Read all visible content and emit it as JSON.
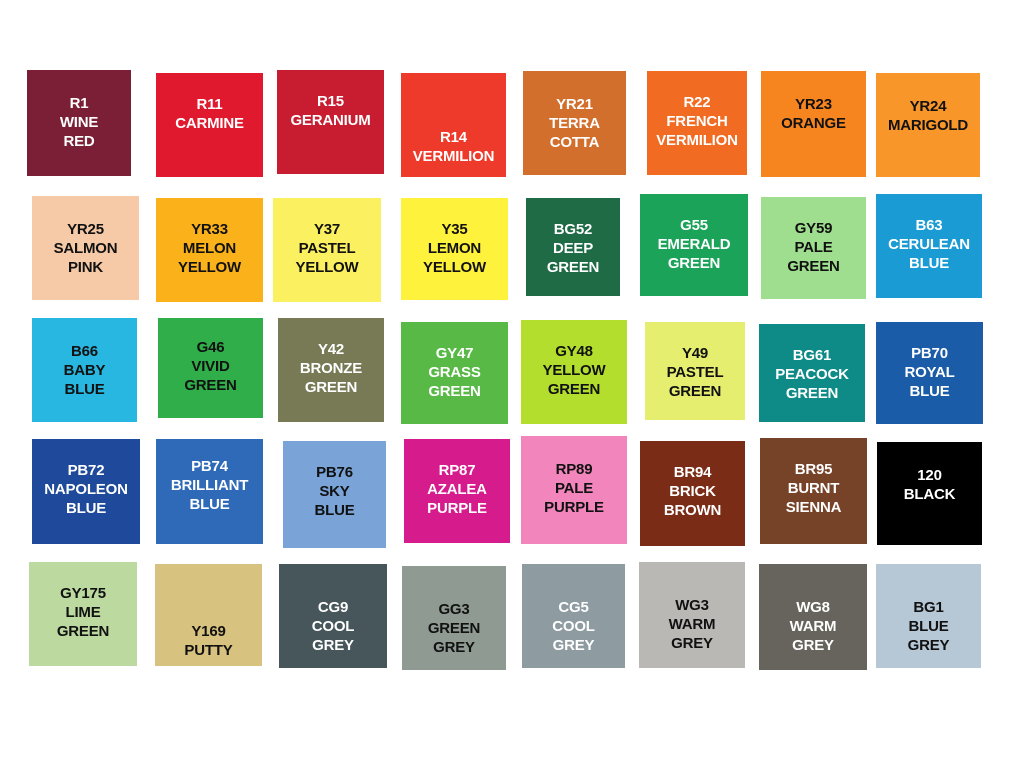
{
  "swatches": [
    {
      "lines": [
        "R1",
        "WINE",
        "RED"
      ],
      "color": "#7a1f35",
      "text_color": "#ffffff"
    },
    {
      "lines": [
        "R11",
        "CARMINE"
      ],
      "color": "#e1192f",
      "text_color": "#ffffff"
    },
    {
      "lines": [
        "R15",
        "GERANIUM"
      ],
      "color": "#c81d31",
      "text_color": "#ffffff"
    },
    {
      "lines": [
        "R14",
        "VERMILION"
      ],
      "color": "#ee3a2a",
      "text_color": "#ffffff"
    },
    {
      "lines": [
        "YR21",
        "TERRA",
        "COTTA"
      ],
      "color": "#d36f2c",
      "text_color": "#ffffff"
    },
    {
      "lines": [
        "R22",
        "FRENCH",
        "VERMILION"
      ],
      "color": "#f26b22",
      "text_color": "#ffffff"
    },
    {
      "lines": [
        "YR23",
        "ORANGE"
      ],
      "color": "#f7851f",
      "text_color": "#111111"
    },
    {
      "lines": [
        "YR24",
        "MARIGOLD"
      ],
      "color": "#f9962a",
      "text_color": "#111111"
    },
    {
      "lines": [
        "YR25",
        "SALMON",
        "PINK"
      ],
      "color": "#f6caa6",
      "text_color": "#111111"
    },
    {
      "lines": [
        "YR33",
        "MELON",
        "YELLOW"
      ],
      "color": "#fbb21a",
      "text_color": "#111111"
    },
    {
      "lines": [
        "Y37",
        "PASTEL",
        "YELLOW"
      ],
      "color": "#fbf05f",
      "text_color": "#111111"
    },
    {
      "lines": [
        "Y35",
        "LEMON",
        "YELLOW"
      ],
      "color": "#fff23c",
      "text_color": "#111111"
    },
    {
      "lines": [
        "BG52",
        "DEEP",
        "GREEN"
      ],
      "color": "#1e6b46",
      "text_color": "#ffffff"
    },
    {
      "lines": [
        "G55",
        "EMERALD",
        "GREEN"
      ],
      "color": "#1ca35a",
      "text_color": "#ffffff"
    },
    {
      "lines": [
        "GY59",
        "PALE",
        "GREEN"
      ],
      "color": "#9fde8e",
      "text_color": "#111111"
    },
    {
      "lines": [
        "B63",
        "CERULEAN",
        "BLUE"
      ],
      "color": "#1b9bd4",
      "text_color": "#ffffff"
    },
    {
      "lines": [
        "B66",
        "BABY",
        "BLUE"
      ],
      "color": "#27b7e1",
      "text_color": "#111111"
    },
    {
      "lines": [
        "G46",
        "VIVID",
        "GREEN"
      ],
      "color": "#2fae4a",
      "text_color": "#111111"
    },
    {
      "lines": [
        "Y42",
        "BRONZE",
        "GREEN"
      ],
      "color": "#777a55",
      "text_color": "#ffffff"
    },
    {
      "lines": [
        "GY47",
        "GRASS",
        "GREEN"
      ],
      "color": "#58b947",
      "text_color": "#ffffff"
    },
    {
      "lines": [
        "GY48",
        "YELLOW",
        "GREEN"
      ],
      "color": "#b4de2e",
      "text_color": "#111111"
    },
    {
      "lines": [
        "Y49",
        "PASTEL",
        "GREEN"
      ],
      "color": "#e6ee70",
      "text_color": "#111111"
    },
    {
      "lines": [
        "BG61",
        "PEACOCK",
        "GREEN"
      ],
      "color": "#0e8a87",
      "text_color": "#ffffff"
    },
    {
      "lines": [
        "PB70",
        "ROYAL",
        "BLUE"
      ],
      "color": "#1a5ca8",
      "text_color": "#ffffff"
    },
    {
      "lines": [
        "PB72",
        "NAPOLEON",
        "BLUE"
      ],
      "color": "#1f4a9b",
      "text_color": "#ffffff"
    },
    {
      "lines": [
        "PB74",
        "BRILLIANT",
        "BLUE"
      ],
      "color": "#2f6ab9",
      "text_color": "#ffffff"
    },
    {
      "lines": [
        "PB76",
        "SKY",
        "BLUE"
      ],
      "color": "#7aa4d8",
      "text_color": "#111111"
    },
    {
      "lines": [
        "RP87",
        "AZALEA",
        "PURPLE"
      ],
      "color": "#d61b8c",
      "text_color": "#ffffff"
    },
    {
      "lines": [
        "RP89",
        "PALE",
        "PURPLE"
      ],
      "color": "#f286bc",
      "text_color": "#111111"
    },
    {
      "lines": [
        "BR94",
        "BRICK",
        "BROWN"
      ],
      "color": "#7b2c16",
      "text_color": "#ffffff"
    },
    {
      "lines": [
        "BR95",
        "BURNT",
        "SIENNA"
      ],
      "color": "#774328",
      "text_color": "#ffffff"
    },
    {
      "lines": [
        "120",
        "BLACK"
      ],
      "color": "#000000",
      "text_color": "#ffffff"
    },
    {
      "lines": [
        "GY175",
        "LIME",
        "GREEN"
      ],
      "color": "#bcd9a0",
      "text_color": "#111111"
    },
    {
      "lines": [
        "Y169",
        "PUTTY"
      ],
      "color": "#d8c27f",
      "text_color": "#111111"
    },
    {
      "lines": [
        "CG9",
        "COOL",
        "GREY"
      ],
      "color": "#46565b",
      "text_color": "#ffffff"
    },
    {
      "lines": [
        "GG3",
        "GREEN",
        "GREY"
      ],
      "color": "#8f9b92",
      "text_color": "#111111"
    },
    {
      "lines": [
        "CG5",
        "COOL",
        "GREY"
      ],
      "color": "#8e9ba1",
      "text_color": "#ffffff"
    },
    {
      "lines": [
        "WG3",
        "WARM",
        "GREY"
      ],
      "color": "#b9b8b4",
      "text_color": "#111111"
    },
    {
      "lines": [
        "WG8",
        "WARM",
        "GREY"
      ],
      "color": "#67645d",
      "text_color": "#ffffff"
    },
    {
      "lines": [
        "BG1",
        "BLUE",
        "GREY"
      ],
      "color": "#b6c8d5",
      "text_color": "#111111"
    }
  ]
}
